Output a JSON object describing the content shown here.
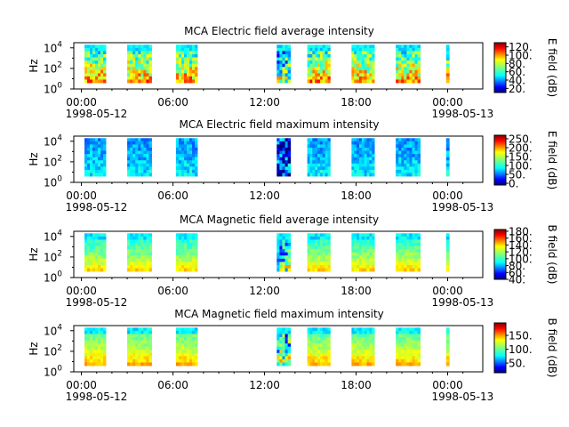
{
  "chart_data": [
    {
      "type": "heatmap",
      "title": "MCA  Electric field average intensity",
      "ylabel": "Hz",
      "y_scale": "log",
      "y_ticks": [
        "10",
        "10",
        "10"
      ],
      "y_tick_exponents": [
        "0",
        "2",
        "4"
      ],
      "x_ticks": [
        "00:00",
        "06:00",
        "12:00",
        "18:00",
        "00:00"
      ],
      "x_date_labels": [
        "1998-05-12",
        "1998-05-13"
      ],
      "colorbar_label": "E field (dB)",
      "colorbar_ticks": [
        "120.",
        "100.",
        "80.",
        "60.",
        "40.",
        "20."
      ],
      "colorbar_range": [
        10,
        130
      ],
      "colormap": "jet",
      "data_intervals_hours": [
        [
          0.2,
          1.6
        ],
        [
          3.0,
          4.6
        ],
        [
          6.2,
          7.6
        ],
        [
          12.8,
          13.7
        ],
        [
          14.8,
          16.3
        ],
        [
          17.7,
          19.2
        ],
        [
          20.6,
          22.2
        ],
        [
          23.9,
          24.1
        ]
      ],
      "data_freq_range_hz": [
        4,
        20000
      ]
    },
    {
      "type": "heatmap",
      "title": "MCA  Electric field maximum intensity",
      "ylabel": "Hz",
      "y_scale": "log",
      "y_ticks": [
        "10",
        "10",
        "10"
      ],
      "y_tick_exponents": [
        "0",
        "2",
        "4"
      ],
      "x_ticks": [
        "00:00",
        "06:00",
        "12:00",
        "18:00",
        "00:00"
      ],
      "x_date_labels": [
        "1998-05-12",
        "1998-05-13"
      ],
      "colorbar_label": "E field (dB)",
      "colorbar_ticks": [
        "250.",
        "200.",
        "150.",
        "100.",
        "50.",
        "0."
      ],
      "colorbar_range": [
        -10,
        270
      ],
      "colormap": "jet",
      "data_intervals_hours": [
        [
          0.2,
          1.6
        ],
        [
          3.0,
          4.6
        ],
        [
          6.2,
          7.6
        ],
        [
          12.8,
          13.7
        ],
        [
          14.8,
          16.3
        ],
        [
          17.7,
          19.2
        ],
        [
          20.6,
          22.2
        ],
        [
          23.9,
          24.1
        ]
      ],
      "data_freq_range_hz": [
        4,
        20000
      ]
    },
    {
      "type": "heatmap",
      "title": "MCA  Magnetic field average intensity",
      "ylabel": "Hz",
      "y_scale": "log",
      "y_ticks": [
        "10",
        "10",
        "10"
      ],
      "y_tick_exponents": [
        "0",
        "2",
        "4"
      ],
      "x_ticks": [
        "00:00",
        "06:00",
        "12:00",
        "18:00",
        "00:00"
      ],
      "x_date_labels": [
        "1998-05-12",
        "1998-05-13"
      ],
      "colorbar_label": "B field (dB)",
      "colorbar_ticks": [
        "180.",
        "160.",
        "140.",
        "120.",
        "100.",
        "80.",
        "60.",
        "40."
      ],
      "colorbar_range": [
        40,
        185
      ],
      "colormap": "jet",
      "data_intervals_hours": [
        [
          0.2,
          1.6
        ],
        [
          3.0,
          4.6
        ],
        [
          6.2,
          7.6
        ],
        [
          12.8,
          13.7
        ],
        [
          14.8,
          16.3
        ],
        [
          17.7,
          19.2
        ],
        [
          20.6,
          22.2
        ],
        [
          23.9,
          24.1
        ]
      ],
      "data_freq_range_hz": [
        4,
        20000
      ]
    },
    {
      "type": "heatmap",
      "title": "MCA  Magnetic field maximum intensity",
      "ylabel": "Hz",
      "y_scale": "log",
      "y_ticks": [
        "10",
        "10",
        "10"
      ],
      "y_tick_exponents": [
        "0",
        "2",
        "4"
      ],
      "x_ticks": [
        "00:00",
        "06:00",
        "12:00",
        "18:00",
        "00:00"
      ],
      "x_date_labels": [
        "1998-05-12",
        "1998-05-13"
      ],
      "colorbar_label": "B field (dB)",
      "colorbar_ticks": [
        "150.",
        "100.",
        "50."
      ],
      "colorbar_range": [
        15,
        195
      ],
      "colormap": "jet",
      "data_intervals_hours": [
        [
          0.2,
          1.6
        ],
        [
          3.0,
          4.6
        ],
        [
          6.2,
          7.6
        ],
        [
          12.8,
          13.7
        ],
        [
          14.8,
          16.3
        ],
        [
          17.7,
          19.2
        ],
        [
          20.6,
          22.2
        ],
        [
          23.9,
          24.1
        ]
      ],
      "data_freq_range_hz": [
        4,
        20000
      ]
    }
  ],
  "colors": {
    "jet": [
      "#00007f",
      "#0000ff",
      "#007fff",
      "#00ffff",
      "#7fff7f",
      "#ffff00",
      "#ff7f00",
      "#ff0000",
      "#7f0000"
    ]
  }
}
